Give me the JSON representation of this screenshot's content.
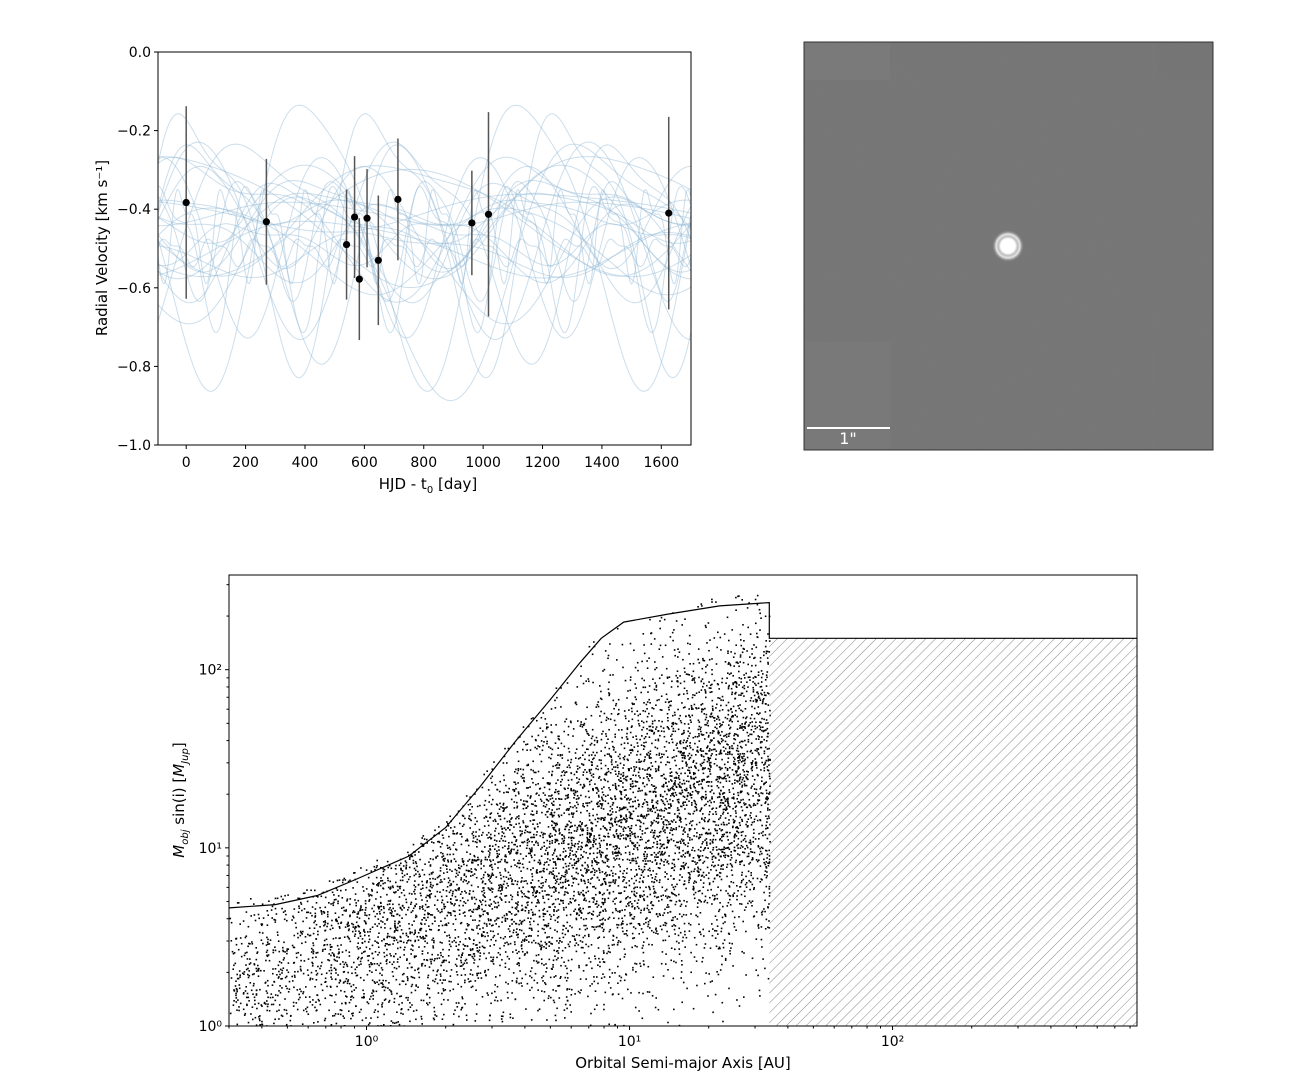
{
  "chart_data": [
    {
      "type": "scatter",
      "panel": "radial-velocity",
      "xlabel": "HJD - t",
      "xlabel_sub": "0",
      "xlabel_suffix": " [day]",
      "ylabel": "Radial Velocity [km s⁻¹]",
      "xlim": [
        -95,
        1700
      ],
      "ylim": [
        -1.0,
        0.0
      ],
      "xticks": [
        0,
        200,
        400,
        600,
        800,
        1000,
        1200,
        1400,
        1600
      ],
      "yticks": [
        0.0,
        -0.2,
        -0.4,
        -0.6,
        -0.8,
        -1.0
      ],
      "ytick_labels": [
        "0.0",
        "−0.2",
        "−0.4",
        "−0.6",
        "−0.8",
        "−1.0"
      ],
      "points": [
        {
          "x": 0,
          "y": -0.383,
          "err": 0.245
        },
        {
          "x": 270,
          "y": -0.432,
          "err": 0.16
        },
        {
          "x": 540,
          "y": -0.49,
          "err": 0.14
        },
        {
          "x": 567,
          "y": -0.42,
          "err": 0.155
        },
        {
          "x": 583,
          "y": -0.578,
          "err": 0.155
        },
        {
          "x": 609,
          "y": -0.423,
          "err": 0.125
        },
        {
          "x": 647,
          "y": -0.53,
          "err": 0.165
        },
        {
          "x": 713,
          "y": -0.375,
          "err": 0.155
        },
        {
          "x": 962,
          "y": -0.435,
          "err": 0.133
        },
        {
          "x": 1018,
          "y": -0.413,
          "err": 0.26
        },
        {
          "x": 1625,
          "y": -0.41,
          "err": 0.245
        }
      ],
      "model_curve_color": "#8fb5d3",
      "point_color": "#000000"
    },
    {
      "type": "image",
      "panel": "direct-image",
      "scale_bar_label": "1\"",
      "background_color": "#797979"
    },
    {
      "type": "scatter",
      "panel": "detection-limits",
      "xlabel": "Orbital Semi-major Axis [AU]",
      "ylabel": "M_obj sin(i) [M_Jup]",
      "xscale": "log",
      "yscale": "log",
      "xlim": [
        0.3,
        850
      ],
      "ylim": [
        1,
        340
      ],
      "xticks": [
        1,
        10,
        100
      ],
      "xtick_labels": [
        "10⁰",
        "10¹",
        "10²"
      ],
      "yticks": [
        1,
        10,
        100
      ],
      "ytick_labels": [
        "10⁰",
        "10¹",
        "10²"
      ],
      "limit_curve": [
        [
          0.3,
          4.6
        ],
        [
          0.45,
          4.8
        ],
        [
          0.65,
          5.4
        ],
        [
          0.9,
          6.6
        ],
        [
          1.45,
          9.0
        ],
        [
          2.0,
          13.0
        ],
        [
          2.7,
          22.0
        ],
        [
          3.7,
          40.0
        ],
        [
          5.0,
          68.0
        ],
        [
          6.5,
          110.0
        ],
        [
          7.8,
          150.0
        ],
        [
          9.5,
          185.0
        ],
        [
          14.0,
          205.0
        ],
        [
          22.0,
          228.0
        ],
        [
          34.0,
          238.0
        ],
        [
          34.0,
          150.0
        ],
        [
          850.0,
          150.0
        ]
      ],
      "hatched_region": {
        "x": [
          34.0,
          850.0
        ],
        "y": [
          1,
          150.0
        ]
      },
      "point_color": "#000000"
    }
  ]
}
